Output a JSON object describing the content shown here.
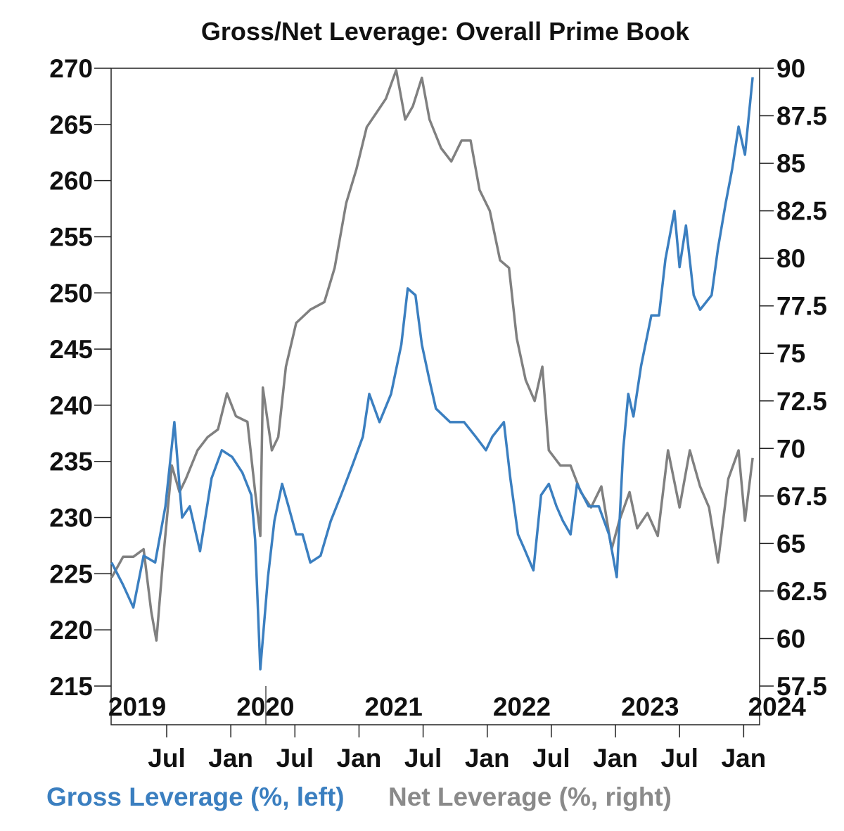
{
  "chart_data": {
    "type": "line",
    "title": "Gross/Net Leverage: Overall Prime Book",
    "x_unit": "decimal year",
    "xlim": [
      2019.07,
      2024.15
    ],
    "y_left": {
      "label": "Gross Leverage (%, left)",
      "range": [
        215,
        270
      ],
      "ticks": [
        "270",
        "265",
        "260",
        "255",
        "250",
        "245",
        "240",
        "235",
        "230",
        "225",
        "220",
        "215"
      ]
    },
    "y_right": {
      "label": "Net Leverage (%, right)",
      "range": [
        57.5,
        90
      ],
      "ticks": [
        "90",
        "87.5",
        "85",
        "82.5",
        "80",
        "77.5",
        "75",
        "72.5",
        "70",
        "67.5",
        "65",
        "62.5",
        "60",
        "57.5"
      ]
    },
    "x_month_ticks": [
      {
        "label": "Jul",
        "x": 2019.5
      },
      {
        "label": "Jan",
        "x": 2020.0
      },
      {
        "label": "Jul",
        "x": 2020.5
      },
      {
        "label": "Jan",
        "x": 2021.0
      },
      {
        "label": "Jul",
        "x": 2021.5
      },
      {
        "label": "Jan",
        "x": 2022.0
      },
      {
        "label": "Jul",
        "x": 2022.5
      },
      {
        "label": "Jan",
        "x": 2023.0
      },
      {
        "label": "Jul",
        "x": 2023.5
      },
      {
        "label": "Jan",
        "x": 2024.0
      }
    ],
    "x_year_labels": [
      {
        "label": "2019",
        "x": 2019.27
      },
      {
        "label": "2020",
        "x": 2020.27
      },
      {
        "label": "2021",
        "x": 2021.27
      },
      {
        "label": "2022",
        "x": 2022.27
      },
      {
        "label": "2023",
        "x": 2023.27
      },
      {
        "label": "2024",
        "x": 2024.26
      }
    ],
    "grid": false,
    "legend_position": "bottom",
    "series": [
      {
        "name": "Gross Leverage (%, left)",
        "axis": "left",
        "color": "#3b7fc0",
        "x": [
          2019.07,
          2019.16,
          2019.24,
          2019.32,
          2019.41,
          2019.49,
          2019.56,
          2019.62,
          2019.68,
          2019.76,
          2019.85,
          2019.93,
          2020.01,
          2020.09,
          2020.16,
          2020.19,
          2020.23,
          2020.29,
          2020.34,
          2020.4,
          2020.45,
          2020.51,
          2020.56,
          2020.62,
          2020.7,
          2020.78,
          2020.86,
          2020.95,
          2021.03,
          2021.08,
          2021.16,
          2021.25,
          2021.33,
          2021.38,
          2021.44,
          2021.49,
          2021.55,
          2021.6,
          2021.71,
          2021.82,
          2021.91,
          2021.99,
          2022.04,
          2022.13,
          2022.18,
          2022.24,
          2022.29,
          2022.36,
          2022.42,
          2022.48,
          2022.54,
          2022.59,
          2022.65,
          2022.7,
          2022.79,
          2022.87,
          2022.95,
          2023.01,
          2023.06,
          2023.1,
          2023.14,
          2023.2,
          2023.28,
          2023.34,
          2023.39,
          2023.46,
          2023.5,
          2023.55,
          2023.61,
          2023.66,
          2023.75,
          2023.8,
          2023.86,
          2023.91,
          2023.96,
          2024.01,
          2024.07
        ],
        "y": [
          226,
          224,
          222,
          226.6,
          226,
          231,
          238.5,
          230,
          231,
          227,
          233.5,
          236,
          235.4,
          234,
          232,
          228,
          216.5,
          224.7,
          229.7,
          233,
          231,
          228.5,
          228.5,
          226,
          226.6,
          229.7,
          232,
          234.7,
          237.2,
          241,
          238.5,
          241,
          245.4,
          250.4,
          249.8,
          245.4,
          242.2,
          239.7,
          238.5,
          238.5,
          237.2,
          236,
          237.2,
          238.5,
          233.5,
          228.5,
          227.2,
          225.3,
          232,
          233,
          231,
          229.7,
          228.5,
          233,
          231,
          231,
          228.5,
          224.7,
          236,
          241,
          239,
          243.5,
          248,
          248,
          253,
          257.3,
          252.3,
          256,
          249.8,
          248.5,
          249.8,
          254,
          258,
          261,
          264.8,
          262.3,
          269.2
        ]
      },
      {
        "name": "Net Leverage (%, right)",
        "axis": "right",
        "color": "#808080",
        "x": [
          2019.07,
          2019.16,
          2019.24,
          2019.32,
          2019.38,
          2019.42,
          2019.47,
          2019.54,
          2019.6,
          2019.65,
          2019.74,
          2019.82,
          2019.9,
          2019.97,
          2020.04,
          2020.13,
          2020.19,
          2020.23,
          2020.25,
          2020.32,
          2020.37,
          2020.43,
          2020.51,
          2020.62,
          2020.73,
          2020.81,
          2020.9,
          2020.98,
          2021.06,
          2021.14,
          2021.21,
          2021.29,
          2021.36,
          2021.42,
          2021.49,
          2021.55,
          2021.64,
          2021.72,
          2021.8,
          2021.87,
          2021.94,
          2022.02,
          2022.1,
          2022.17,
          2022.23,
          2022.3,
          2022.37,
          2022.43,
          2022.48,
          2022.57,
          2022.65,
          2022.73,
          2022.81,
          2022.89,
          2022.97,
          2023.03,
          2023.11,
          2023.17,
          2023.25,
          2023.33,
          2023.41,
          2023.5,
          2023.58,
          2023.66,
          2023.73,
          2023.8,
          2023.88,
          2023.96,
          2024.01,
          2024.07
        ],
        "y": [
          63.2,
          64.3,
          64.3,
          64.7,
          61.4,
          59.9,
          64,
          69.1,
          67.7,
          68.4,
          69.9,
          70.6,
          71,
          72.9,
          71.7,
          71.4,
          67.7,
          65.4,
          73.2,
          69.9,
          70.6,
          74.3,
          76.6,
          77.3,
          77.7,
          79.5,
          82.9,
          84.7,
          86.9,
          87.7,
          88.4,
          89.9,
          87.3,
          88,
          89.5,
          87.3,
          85.8,
          85.1,
          86.2,
          86.2,
          83.6,
          82.5,
          79.9,
          79.5,
          75.8,
          73.6,
          72.5,
          74.3,
          69.9,
          69.1,
          69.1,
          67.7,
          66.9,
          68,
          64.7,
          66.2,
          67.7,
          65.8,
          66.6,
          65.4,
          69.9,
          66.9,
          69.9,
          68,
          66.9,
          64,
          68.4,
          69.9,
          66.2,
          69.5
        ]
      }
    ]
  }
}
